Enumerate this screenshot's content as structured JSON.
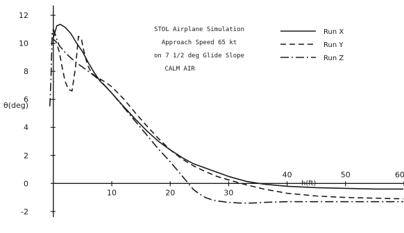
{
  "chart_data": {
    "type": "line",
    "title": "",
    "xlabel": "h(ft)",
    "ylabel": "θ(deg)",
    "xlim": [
      -2,
      60
    ],
    "ylim": [
      -2.6,
      12.4
    ],
    "x_ticks": [
      10,
      20,
      30,
      40,
      50,
      60
    ],
    "y_ticks": [
      -2,
      0,
      2,
      4,
      6,
      8,
      10,
      12
    ],
    "annotations": [
      "STOL Airplane Simulation",
      "Approach Speed 65 kt",
      "on 7 1/2 deg Glide Slope",
      "CALM AIR"
    ],
    "legend_position": "top-right",
    "grid": false,
    "series": [
      {
        "name": "Run X",
        "style": "solid",
        "x": [
          0.0,
          0.6,
          1.2,
          2.0,
          3.0,
          4.0,
          5.0,
          6.0,
          7.0,
          8.0,
          9.0,
          10.0,
          12.0,
          14.0,
          16.0,
          18.0,
          20.0,
          22.0,
          24.0,
          26.0,
          28.0,
          30.0,
          33.0,
          36.0,
          40.0,
          45.0,
          50.0,
          55.0,
          60.0
        ],
        "y": [
          10.4,
          11.25,
          11.35,
          11.15,
          10.7,
          10.0,
          9.4,
          8.6,
          7.9,
          7.3,
          6.9,
          6.45,
          5.5,
          4.6,
          3.75,
          3.0,
          2.4,
          1.85,
          1.4,
          1.1,
          0.8,
          0.5,
          0.15,
          -0.05,
          -0.2,
          -0.3,
          -0.35,
          -0.4,
          -0.4
        ]
      },
      {
        "name": "Run Y",
        "style": "dashed",
        "x": [
          0.0,
          0.5,
          1.0,
          1.5,
          2.0,
          2.6,
          3.2,
          3.8,
          4.3,
          4.8,
          5.2,
          5.8,
          6.5,
          7.2,
          8.0,
          9.0,
          10.0,
          12.0,
          14.0,
          16.0,
          18.0,
          20.0,
          22.0,
          24.0,
          26.0,
          28.0,
          30.0,
          33.0,
          36.0,
          40.0,
          45.0,
          50.0,
          55.0,
          60.0
        ],
        "y": [
          10.3,
          10.1,
          9.4,
          8.3,
          7.3,
          6.7,
          6.6,
          8.3,
          10.5,
          10.3,
          9.5,
          8.5,
          7.9,
          7.65,
          7.45,
          7.2,
          6.9,
          6.05,
          5.05,
          4.1,
          3.2,
          2.4,
          1.75,
          1.25,
          0.85,
          0.5,
          0.25,
          -0.1,
          -0.4,
          -0.7,
          -0.9,
          -1.0,
          -1.05,
          -1.1
        ]
      },
      {
        "name": "Run Z",
        "style": "dash-dot",
        "x": [
          -0.6,
          -0.4,
          -0.2,
          0.0,
          0.2,
          0.5,
          1.0,
          2.0,
          3.0,
          4.0,
          6.0,
          8.0,
          10.0,
          12.0,
          14.0,
          16.0,
          18.0,
          20.0,
          22.0,
          24.0,
          25.0,
          26.0,
          27.0,
          28.0,
          30.0,
          32.0,
          34.0,
          36.0,
          40.0,
          45.0,
          50.0,
          55.0,
          60.0
        ],
        "y": [
          5.5,
          7.5,
          10.8,
          11.0,
          10.8,
          10.4,
          9.85,
          9.35,
          8.95,
          8.6,
          8.0,
          7.35,
          6.45,
          5.45,
          4.45,
          3.45,
          2.45,
          1.55,
          0.55,
          -0.45,
          -0.75,
          -1.0,
          -1.15,
          -1.25,
          -1.35,
          -1.4,
          -1.4,
          -1.35,
          -1.3,
          -1.3,
          -1.3,
          -1.3,
          -1.3
        ]
      }
    ]
  }
}
